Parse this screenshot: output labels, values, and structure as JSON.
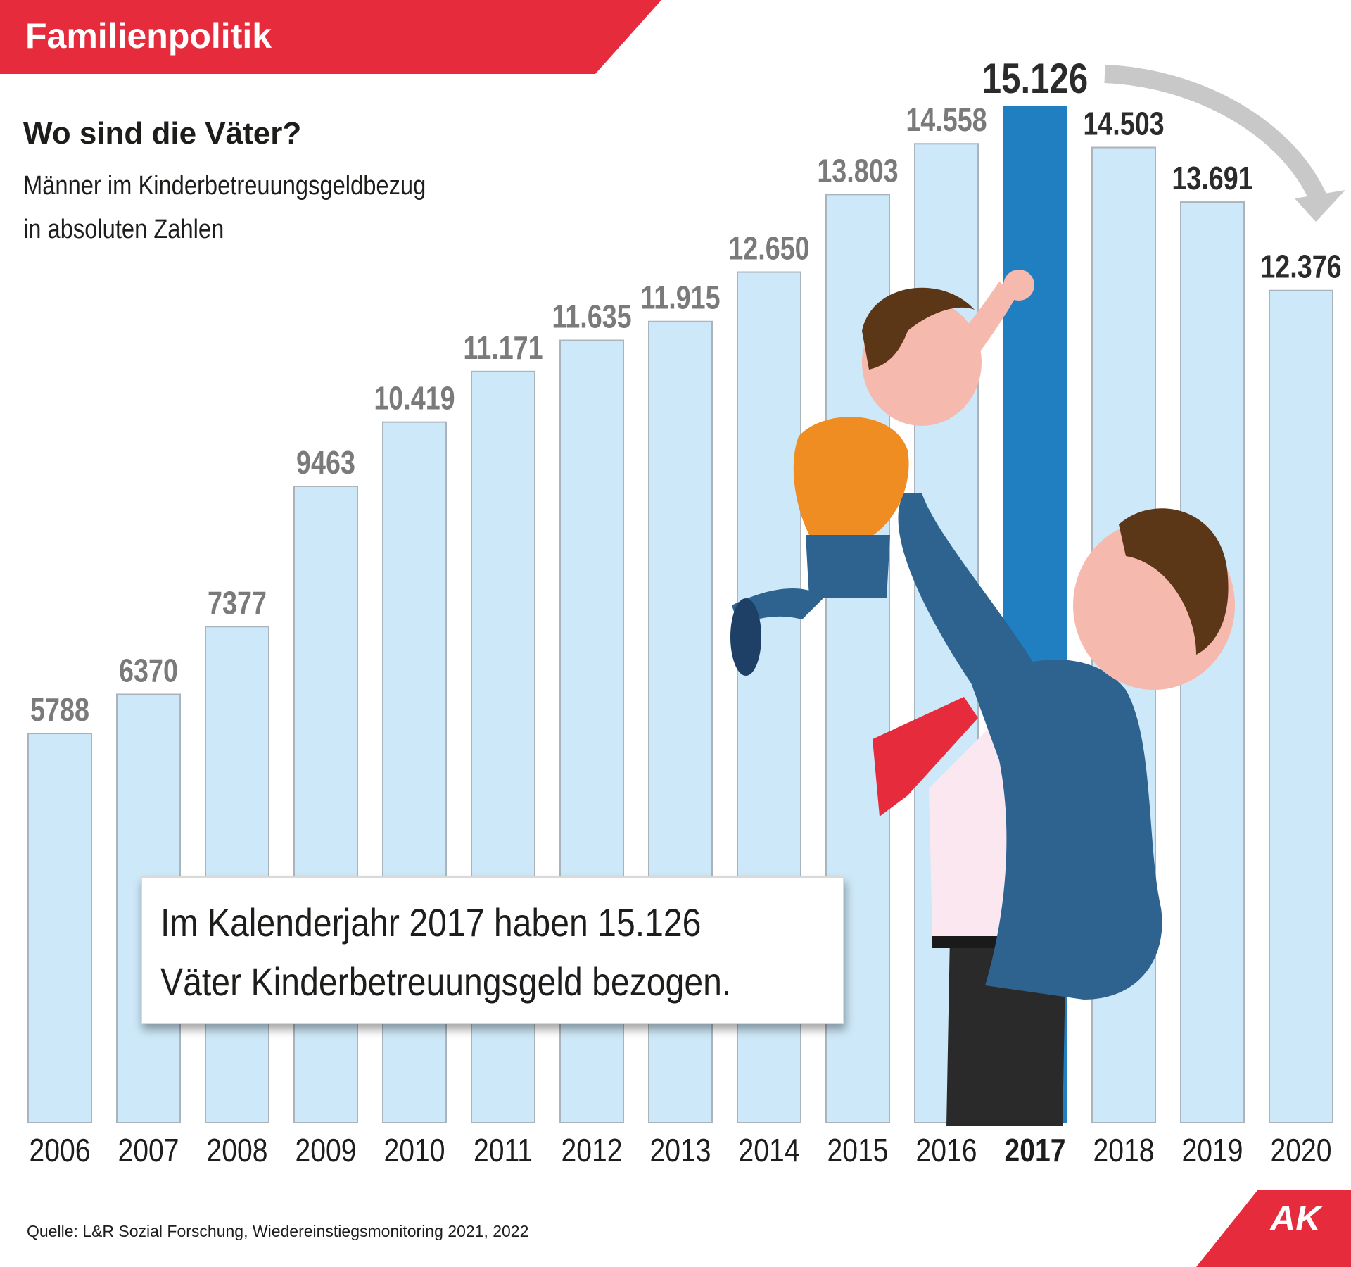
{
  "header": {
    "category": "Familienpolitik"
  },
  "chart_data": {
    "type": "bar",
    "title": "Wo sind die Väter?",
    "subtitle": [
      "Männer im Kinderbetreuungsgeldbezug",
      "in absoluten Zahlen"
    ],
    "categories": [
      "2006",
      "2007",
      "2008",
      "2009",
      "2010",
      "2011",
      "2012",
      "2013",
      "2014",
      "2015",
      "2016",
      "2017",
      "2018",
      "2019",
      "2020"
    ],
    "values": [
      5788,
      6370,
      7377,
      9463,
      10419,
      11171,
      11635,
      11915,
      12650,
      13803,
      14558,
      15126,
      14503,
      13691,
      12376
    ],
    "value_labels": [
      "5788",
      "6370",
      "7377",
      "9463",
      "10.419",
      "11.171",
      "11.635",
      "11.915",
      "12.650",
      "13.803",
      "14.558",
      "15.126",
      "14.503",
      "13.691",
      "12.376"
    ],
    "highlight": "2017",
    "colors": {
      "bar": "#cde8f8",
      "bar_border": "#aab4bc",
      "highlight": "#1f7fc1",
      "label_muted": "#7a7a7a",
      "label_dark": "#2b2b2b"
    },
    "xlabel": "",
    "ylabel": "",
    "ylim": [
      0,
      15126
    ],
    "grid": false,
    "annotation": "decline-arrow-2017-to-2020"
  },
  "callout": {
    "line1": "Im Kalenderjahr 2017 haben 15.126",
    "line2": "Väter Kinderbetreuungsgeld bezogen."
  },
  "source": "Quelle: L&R Sozial Forschung, Wiedereinstiegsmonitoring 2021, 2022",
  "logo": "AK",
  "illustration": "father-lifting-child-illustration"
}
